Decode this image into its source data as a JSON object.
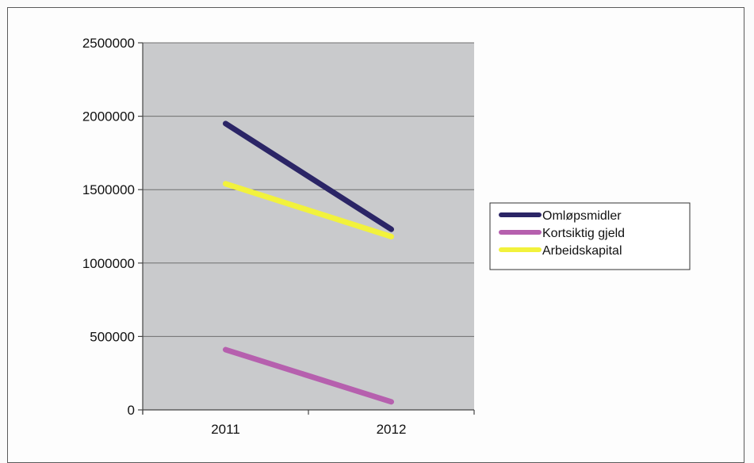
{
  "chart_data": {
    "type": "line",
    "title": "",
    "xlabel": "",
    "ylabel": "",
    "categories": [
      "2011",
      "2012"
    ],
    "ylim": [
      0,
      2500000
    ],
    "yticks": [
      0,
      500000,
      1000000,
      1500000,
      2000000,
      2500000
    ],
    "ytick_labels": [
      "0",
      "500000",
      "1000000",
      "1500000",
      "2000000",
      "2500000"
    ],
    "grid": true,
    "legend_position": "right",
    "plot_background": "#c9cacc",
    "series": [
      {
        "name": "Omløpsmidler",
        "values": [
          1950000,
          1230000
        ],
        "color": "#2b2566"
      },
      {
        "name": "Kortsiktig gjeld",
        "values": [
          410000,
          55000
        ],
        "color": "#b660ae"
      },
      {
        "name": "Arbeidskapital",
        "values": [
          1540000,
          1180000
        ],
        "color": "#f2f23c"
      }
    ]
  }
}
